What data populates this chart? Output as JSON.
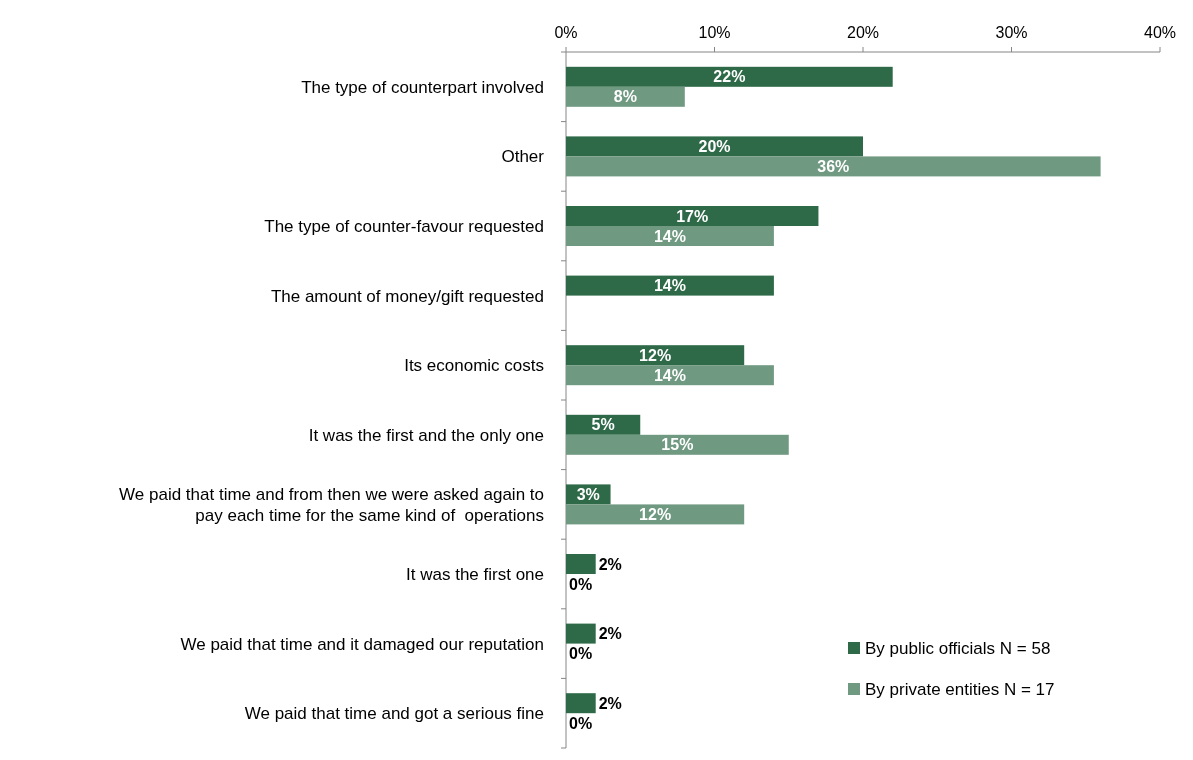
{
  "chart_data": {
    "type": "bar",
    "orientation": "horizontal",
    "categories": [
      "The type of counterpart involved",
      "Other",
      "The type of counter-favour requested",
      "The amount of money/gift requested",
      "Its economic costs",
      "It was the first and the only one",
      "We paid that time and from then we were asked again to pay each time for the same kind of  operations",
      "It was the first one",
      "We paid that time and it damaged our reputation",
      "We paid that time and got a serious fine"
    ],
    "series": [
      {
        "name": "By public officials N = 58",
        "color": "#2e6a48",
        "values": [
          22,
          20,
          17,
          14,
          12,
          5,
          3,
          2,
          2,
          2
        ],
        "value_labels": [
          "22%",
          "20%",
          "17%",
          "14%",
          "12%",
          "5%",
          "3%",
          "2%",
          "2%",
          "2%"
        ]
      },
      {
        "name": "By private entities N = 17",
        "color": "#6f9980",
        "values": [
          8,
          36,
          14,
          null,
          14,
          15,
          12,
          0,
          0,
          0
        ],
        "value_labels": [
          "8%",
          "36%",
          "14%",
          null,
          "14%",
          "15%",
          "12%",
          "0%",
          "0%",
          "0%"
        ]
      }
    ],
    "xlim": [
      0,
      40
    ],
    "xticks": [
      {
        "value": 0,
        "label": "0%"
      },
      {
        "value": 10,
        "label": "10%"
      },
      {
        "value": 20,
        "label": "20%"
      },
      {
        "value": 30,
        "label": "30%"
      },
      {
        "value": 40,
        "label": "40%"
      }
    ],
    "grid": false,
    "legend": "bottom right"
  }
}
